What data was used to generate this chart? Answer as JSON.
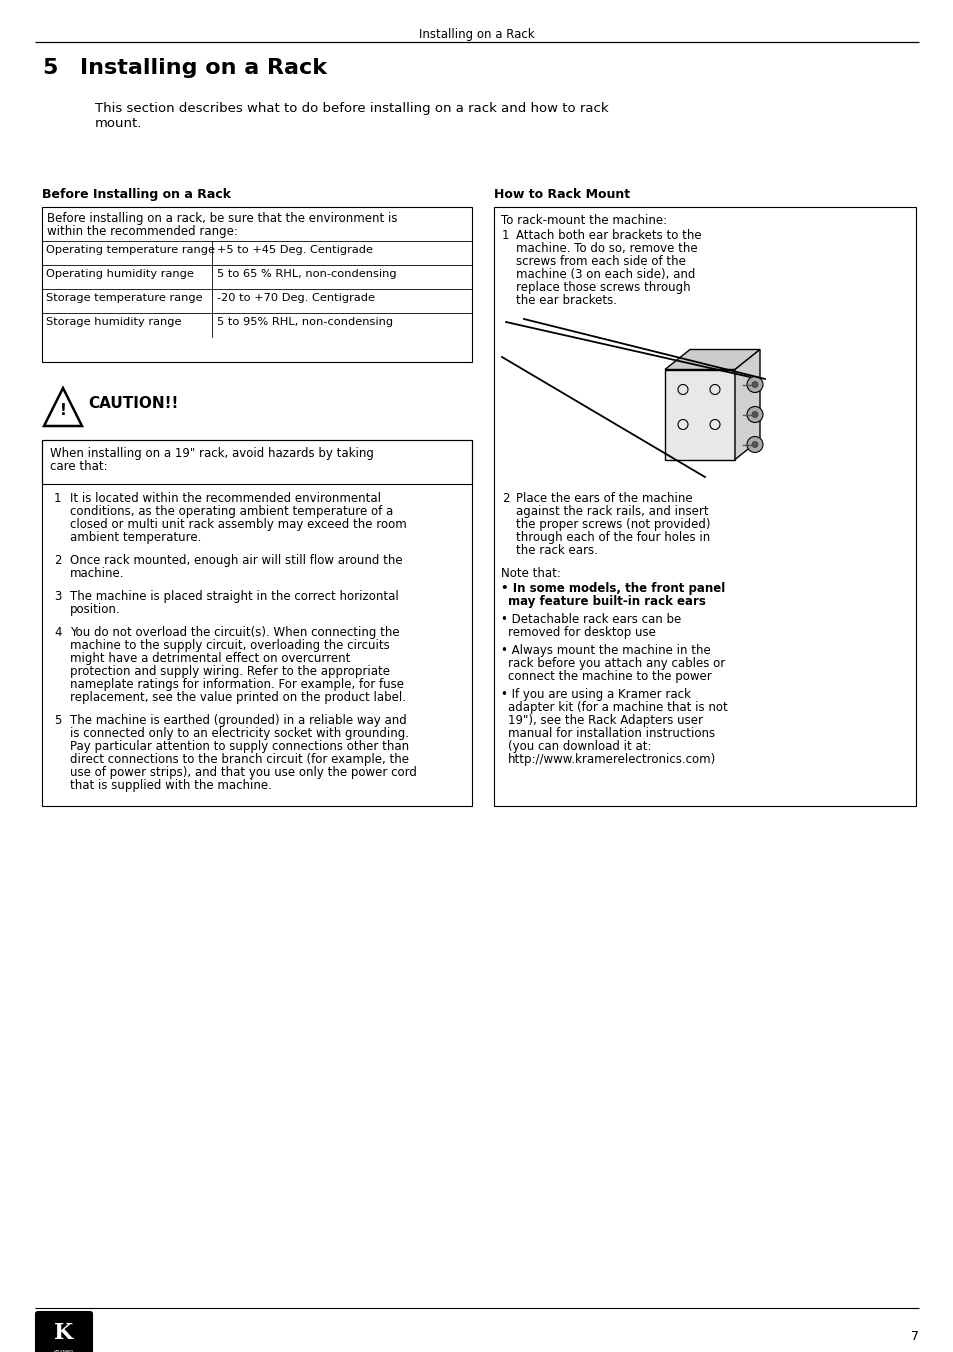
{
  "page_header": "Installing on a Rack",
  "section_number": "5",
  "section_title": "Installing on a Rack",
  "intro_text": "This section describes what to do before installing on a rack and how to rack\nmount.",
  "before_title": "Before Installing on a Rack",
  "before_table_intro": "Before installing on a rack, be sure that the environment is\nwithin the recommended range:",
  "table_rows": [
    [
      "Operating temperature range",
      "+5 to +45 Deg. Centigrade"
    ],
    [
      "Operating humidity range",
      "5 to 65 % RHL, non-condensing"
    ],
    [
      "Storage temperature range",
      "-20 to +70 Deg. Centigrade"
    ],
    [
      "Storage humidity range",
      "5 to 95% RHL, non-condensing"
    ]
  ],
  "caution_text": "CAUTION!!",
  "caution_box": "When installing on a 19\" rack, avoid hazards by taking\ncare that:",
  "caution_items": [
    "It is located within the recommended environmental\nconditions, as the operating ambient temperature of a\nclosed or multi unit rack assembly may exceed the room\nambient temperature.",
    "Once rack mounted, enough air will still flow around the\nmachine.",
    "The machine is placed straight in the correct horizontal\nposition.",
    "You do not overload the circuit(s). When connecting the\nmachine to the supply circuit, overloading the circuits\nmight have a detrimental effect on overcurrent\nprotection and supply wiring. Refer to the appropriate\nnameplate ratings for information. For example, for fuse\nreplacement, see the value printed on the product label.",
    "The machine is earthed (grounded) in a reliable way and\nis connected only to an electricity socket with grounding.\nPay particular attention to supply connections other than\ndirect connections to the branch circuit (for example, the\nuse of power strips), and that you use only the power cord\nthat is supplied with the machine."
  ],
  "how_title": "How to Rack Mount",
  "how_intro": "To rack-mount the machine:",
  "how_items": [
    "Attach both ear brackets to the\nmachine. To do so, remove the\nscrews from each side of the\nmachine (3 on each side), and\nreplace those screws through\nthe ear brackets.",
    "Place the ears of the machine\nagainst the rack rails, and insert\nthe proper screws (not provided)\nthrough each of the four holes in\nthe rack ears."
  ],
  "note_text": "Note that:",
  "note_bullets": [
    "bold:In some models, the front panel\nmay feature built-in rack ears",
    "Detachable rack ears can be\nremoved for desktop use",
    "Always mount the machine in the\nrack before you attach any cables or\nconnect the machine to the power",
    "If you are using a Kramer rack\nadapter kit (for a machine that is not\n19\"), see the Rack Adapters user\nmanual for installation instructions\n(you can download it at:\nhttp://www.kramerelectronics.com)"
  ],
  "page_number": "7",
  "bg_color": "#ffffff",
  "text_color": "#000000"
}
